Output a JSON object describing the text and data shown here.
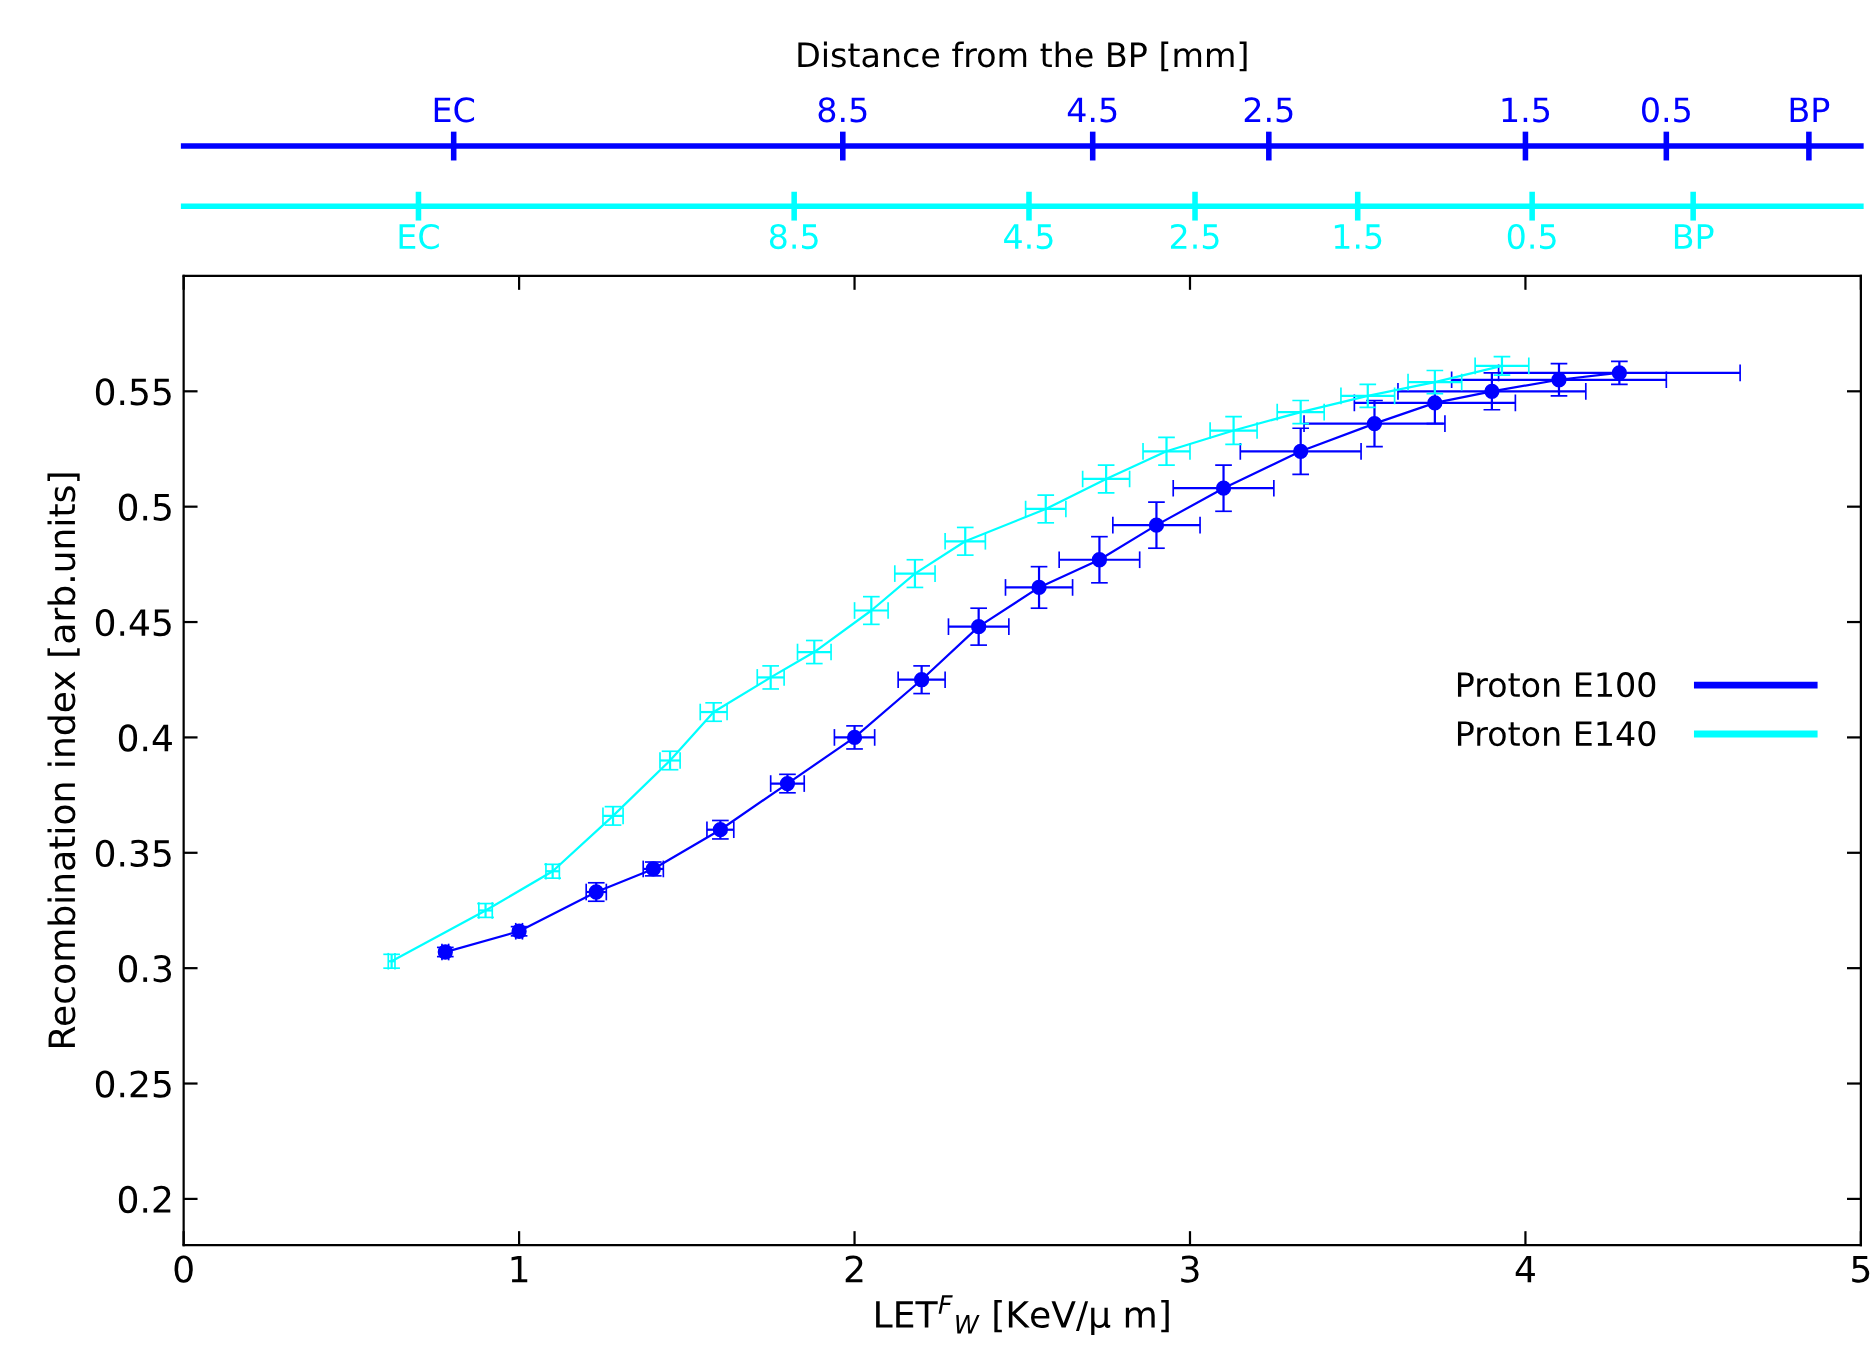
{
  "chart_data": {
    "type": "line",
    "xlabel": "LET$^{F}$$_{W}$ [KeV/μ m]",
    "ylabel": "Recombination index [arb.units]",
    "title": "Distance from the BP [mm]",
    "xlim": [
      0,
      5
    ],
    "xticks": [
      0,
      1,
      2,
      3,
      4,
      5
    ],
    "ylim": [
      0.18,
      0.6
    ],
    "yticks": [
      0.2,
      0.25,
      0.3,
      0.35,
      0.4,
      0.45,
      0.5,
      0.55
    ],
    "annotations": [
      "EC",
      "8.5",
      "4.5",
      "2.5",
      "1.5",
      "0.5",
      "BP",
      "EC",
      "8.5",
      "4.5",
      "2.5",
      "1.5",
      "0.5",
      "BP"
    ],
    "legend": "right",
    "grid": false,
    "series": [
      {
        "name": "Proton E100",
        "color": "#0000ff",
        "marker": "circle",
        "x": [
          0.78,
          1.0,
          1.23,
          1.4,
          1.6,
          1.8,
          2.0,
          2.2,
          2.37,
          2.55,
          2.73,
          2.9,
          3.1,
          3.33,
          3.55,
          3.73,
          3.9,
          4.1,
          4.28
        ],
        "values": [
          0.307,
          0.316,
          0.333,
          0.343,
          0.36,
          0.38,
          0.4,
          0.425,
          0.448,
          0.465,
          0.477,
          0.492,
          0.508,
          0.524,
          0.536,
          0.545,
          0.55,
          0.555,
          0.558
        ],
        "errors": [
          0.002,
          0.002,
          0.004,
          0.003,
          0.004,
          0.004,
          0.005,
          0.006,
          0.008,
          0.009,
          0.01,
          0.01,
          0.01,
          0.01,
          0.01,
          0.009,
          0.008,
          0.007,
          0.005
        ],
        "xerrors": [
          0.01,
          0.01,
          0.03,
          0.03,
          0.04,
          0.05,
          0.06,
          0.07,
          0.09,
          0.1,
          0.12,
          0.13,
          0.15,
          0.18,
          0.21,
          0.24,
          0.28,
          0.32,
          0.36
        ]
      },
      {
        "name": "Proton E140",
        "color": "#00ffff",
        "marker": "none",
        "x": [
          0.62,
          0.9,
          1.1,
          1.28,
          1.45,
          1.58,
          1.75,
          1.88,
          2.05,
          2.18,
          2.33,
          2.57,
          2.75,
          2.93,
          3.13,
          3.33,
          3.53,
          3.73,
          3.93
        ],
        "values": [
          0.303,
          0.325,
          0.342,
          0.366,
          0.39,
          0.411,
          0.426,
          0.437,
          0.455,
          0.471,
          0.485,
          0.499,
          0.512,
          0.524,
          0.533,
          0.541,
          0.548,
          0.554,
          0.561
        ],
        "errors": [
          0.003,
          0.003,
          0.003,
          0.004,
          0.004,
          0.004,
          0.005,
          0.005,
          0.006,
          0.006,
          0.006,
          0.006,
          0.006,
          0.006,
          0.006,
          0.005,
          0.005,
          0.005,
          0.004
        ],
        "xerrors": [
          0.01,
          0.02,
          0.02,
          0.03,
          0.03,
          0.04,
          0.04,
          0.05,
          0.05,
          0.06,
          0.06,
          0.06,
          0.07,
          0.07,
          0.07,
          0.07,
          0.08,
          0.08,
          0.08
        ]
      }
    ]
  }
}
